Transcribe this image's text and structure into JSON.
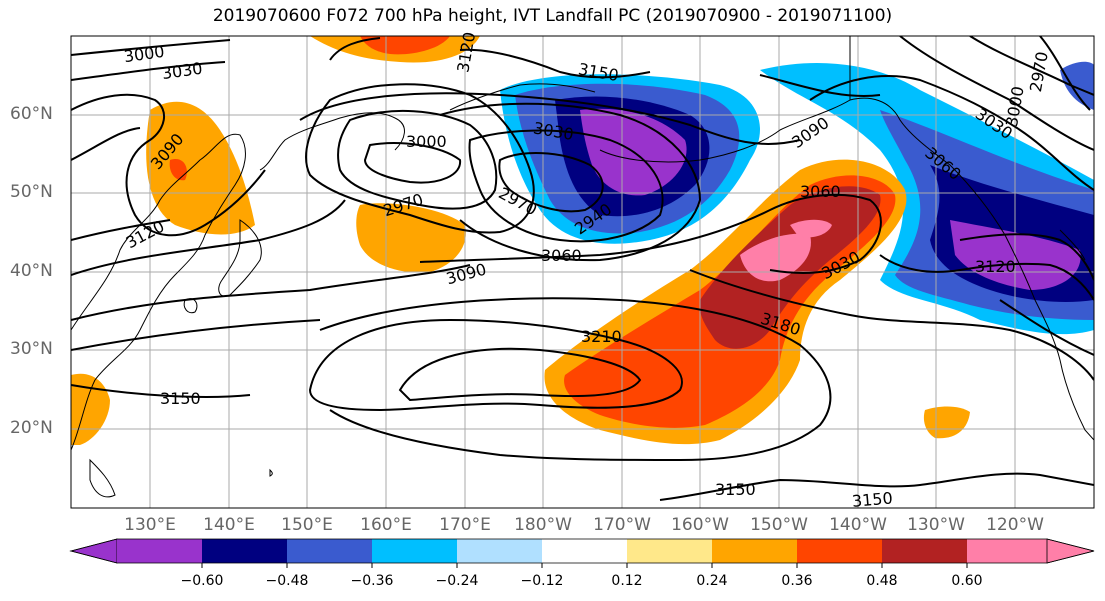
{
  "title": "2019070600 F072 700 hPa height, IVT Landfall PC (2019070900 - 2019071100)",
  "lat_labels": [
    "60°N",
    "50°N",
    "40°N",
    "30°N",
    "20°N"
  ],
  "lon_labels": [
    "130°E",
    "140°E",
    "150°E",
    "160°E",
    "170°E",
    "180°W",
    "170°W",
    "160°W",
    "150°W",
    "140°W",
    "130°W",
    "120°W"
  ],
  "contour_labels": [
    "3000",
    "3030",
    "3090",
    "3120",
    "3150",
    "3000",
    "2970",
    "2970",
    "2940",
    "3030",
    "3060",
    "3090",
    "3090",
    "3060",
    "3030",
    "3180",
    "3210",
    "3150",
    "3150",
    "3150",
    "3120",
    "3000",
    "3030",
    "2970",
    "3060",
    "3120"
  ],
  "colorbar": {
    "ticks": [
      "−0.60",
      "−0.48",
      "−0.36",
      "−0.24",
      "−0.12",
      "0.12",
      "0.24",
      "0.36",
      "0.48",
      "0.60"
    ],
    "colors": [
      "#9933cc",
      "#000080",
      "#3a5bcf",
      "#00bfff",
      "#b0e0ff",
      "#ffffff",
      "#ffe88a",
      "#ffa500",
      "#ff4500",
      "#b22222",
      "#ff7fa8"
    ]
  }
}
